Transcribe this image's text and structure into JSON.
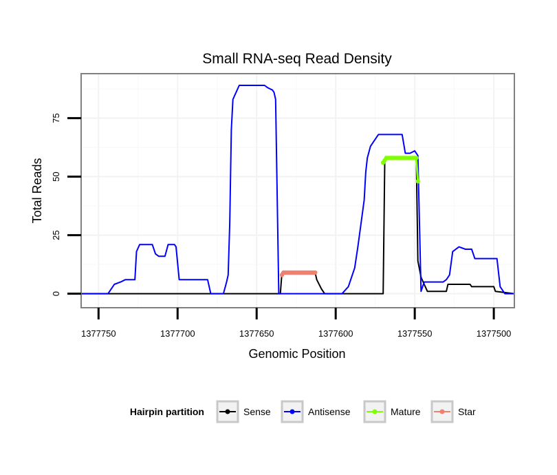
{
  "chart_data": {
    "type": "line",
    "title": "Small RNA-seq Read Density",
    "xlabel": "Genomic Position",
    "ylabel": "Total Reads",
    "x_reversed": true,
    "xlim": [
      1377761,
      1377487
    ],
    "ylim": [
      -6,
      94
    ],
    "x_ticks": [
      1377750,
      1377700,
      1377650,
      1377600,
      1377550,
      1377500
    ],
    "x_tick_labels": [
      "1377750",
      "1377700",
      "1377650",
      "1377600",
      "1377550",
      "1377500"
    ],
    "y_ticks": [
      0,
      25,
      50,
      75
    ],
    "y_tick_labels": [
      "0",
      "25",
      "50",
      "75"
    ],
    "grid": true,
    "legend": {
      "title": "Hairpin partition",
      "position": "bottom",
      "entries": [
        {
          "name": "Sense",
          "color": "#000000"
        },
        {
          "name": "Antisense",
          "color": "#0000ff"
        },
        {
          "name": "Mature",
          "color": "#7fff00"
        },
        {
          "name": "Star",
          "color": "#f08070"
        }
      ]
    },
    "series": [
      {
        "name": "Sense",
        "color": "#000000",
        "markers": false,
        "points": [
          [
            1377761,
            0
          ],
          [
            1377635,
            0
          ],
          [
            1377634,
            9
          ],
          [
            1377613,
            9
          ],
          [
            1377612,
            6
          ],
          [
            1377609,
            2
          ],
          [
            1377607,
            0
          ],
          [
            1377570,
            0
          ],
          [
            1377569,
            56
          ],
          [
            1377568,
            58
          ],
          [
            1377549,
            58
          ],
          [
            1377548,
            14
          ],
          [
            1377546,
            7
          ],
          [
            1377544,
            4
          ],
          [
            1377542,
            1
          ],
          [
            1377530,
            1
          ],
          [
            1377529,
            4
          ],
          [
            1377515,
            4
          ],
          [
            1377514,
            3
          ],
          [
            1377500,
            3
          ],
          [
            1377499,
            1
          ],
          [
            1377487,
            0
          ]
        ]
      },
      {
        "name": "Antisense",
        "color": "#0000ff",
        "markers": false,
        "points": [
          [
            1377761,
            0
          ],
          [
            1377744,
            0
          ],
          [
            1377742,
            2
          ],
          [
            1377740,
            4
          ],
          [
            1377736,
            5
          ],
          [
            1377733,
            6
          ],
          [
            1377727,
            6
          ],
          [
            1377726,
            18
          ],
          [
            1377724,
            21
          ],
          [
            1377716,
            21
          ],
          [
            1377714,
            17
          ],
          [
            1377712,
            16
          ],
          [
            1377708,
            16
          ],
          [
            1377706,
            21
          ],
          [
            1377702,
            21
          ],
          [
            1377701,
            20
          ],
          [
            1377699,
            6
          ],
          [
            1377681,
            6
          ],
          [
            1377679,
            0
          ],
          [
            1377671,
            0
          ],
          [
            1377669,
            5
          ],
          [
            1377668,
            8
          ],
          [
            1377667,
            30
          ],
          [
            1377666,
            70
          ],
          [
            1377665,
            83
          ],
          [
            1377663,
            86
          ],
          [
            1377661,
            89
          ],
          [
            1377645,
            89
          ],
          [
            1377643,
            88
          ],
          [
            1377640,
            87
          ],
          [
            1377639,
            86
          ],
          [
            1377638,
            83
          ],
          [
            1377636,
            0
          ],
          [
            1377598,
            0
          ],
          [
            1377596,
            0
          ],
          [
            1377592,
            3
          ],
          [
            1377590,
            7
          ],
          [
            1377588,
            11
          ],
          [
            1377586,
            20
          ],
          [
            1377584,
            30
          ],
          [
            1377582,
            40
          ],
          [
            1377581,
            52
          ],
          [
            1377580,
            58
          ],
          [
            1377578,
            63
          ],
          [
            1377575,
            66
          ],
          [
            1377573,
            68
          ],
          [
            1377558,
            68
          ],
          [
            1377556,
            60
          ],
          [
            1377553,
            60
          ],
          [
            1377550,
            61
          ],
          [
            1377548,
            59
          ],
          [
            1377546,
            1
          ],
          [
            1377544,
            5
          ],
          [
            1377532,
            5
          ],
          [
            1377530,
            6
          ],
          [
            1377528,
            8
          ],
          [
            1377526,
            18
          ],
          [
            1377522,
            20
          ],
          [
            1377518,
            19
          ],
          [
            1377514,
            19
          ],
          [
            1377512,
            15
          ],
          [
            1377498,
            15
          ],
          [
            1377496,
            3
          ],
          [
            1377493,
            0
          ],
          [
            1377487,
            0
          ]
        ]
      },
      {
        "name": "Mature",
        "color": "#7fff00",
        "markers": true,
        "points": [
          [
            1377570,
            56
          ],
          [
            1377569,
            57
          ],
          [
            1377568,
            58
          ],
          [
            1377567,
            58
          ],
          [
            1377566,
            58
          ],
          [
            1377565,
            58
          ],
          [
            1377564,
            58
          ],
          [
            1377563,
            58
          ],
          [
            1377562,
            58
          ],
          [
            1377561,
            58
          ],
          [
            1377560,
            58
          ],
          [
            1377559,
            58
          ],
          [
            1377558,
            58
          ],
          [
            1377557,
            58
          ],
          [
            1377556,
            58
          ],
          [
            1377555,
            58
          ],
          [
            1377554,
            58
          ],
          [
            1377553,
            58
          ],
          [
            1377552,
            58
          ],
          [
            1377551,
            58
          ],
          [
            1377550,
            58
          ],
          [
            1377549,
            58
          ],
          [
            1377548,
            48
          ]
        ]
      },
      {
        "name": "Star",
        "color": "#f08070",
        "markers": true,
        "points": [
          [
            1377634,
            8
          ],
          [
            1377633,
            9
          ],
          [
            1377632,
            9
          ],
          [
            1377631,
            9
          ],
          [
            1377630,
            9
          ],
          [
            1377629,
            9
          ],
          [
            1377628,
            9
          ],
          [
            1377627,
            9
          ],
          [
            1377626,
            9
          ],
          [
            1377625,
            9
          ],
          [
            1377624,
            9
          ],
          [
            1377623,
            9
          ],
          [
            1377622,
            9
          ],
          [
            1377621,
            9
          ],
          [
            1377620,
            9
          ],
          [
            1377619,
            9
          ],
          [
            1377618,
            9
          ],
          [
            1377617,
            9
          ],
          [
            1377616,
            9
          ],
          [
            1377615,
            9
          ],
          [
            1377614,
            9
          ],
          [
            1377613,
            9
          ]
        ]
      }
    ]
  }
}
